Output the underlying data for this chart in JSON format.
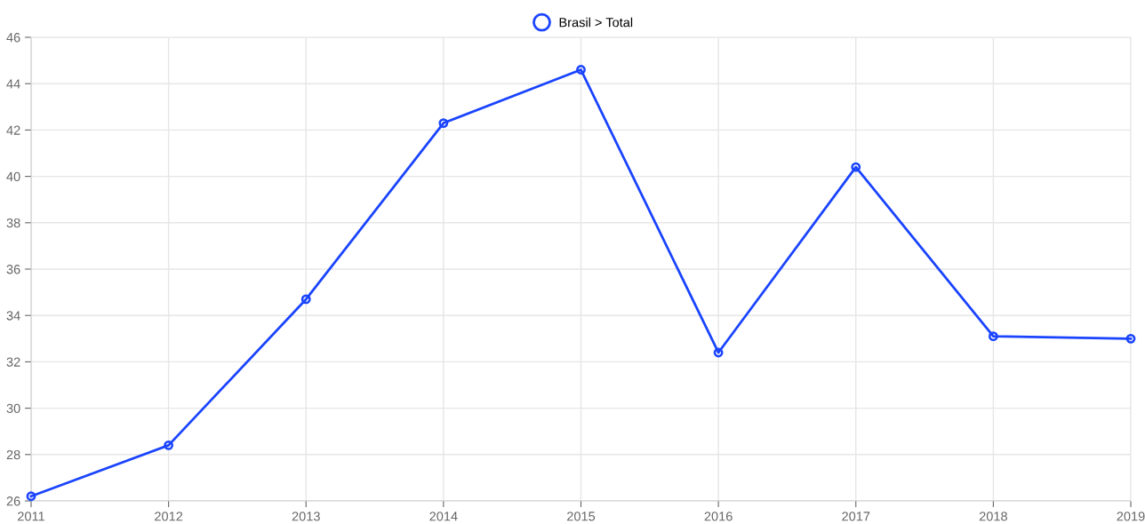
{
  "chart_data": {
    "type": "line",
    "categories": [
      "2011",
      "2012",
      "2013",
      "2014",
      "2015",
      "2016",
      "2017",
      "2018",
      "2019"
    ],
    "series": [
      {
        "name": "Brasil > Total",
        "color": "#1a44ff",
        "values": [
          26.2,
          28.4,
          34.7,
          42.3,
          44.6,
          32.4,
          40.4,
          33.1,
          33.0
        ]
      }
    ],
    "ylim": [
      26,
      46
    ],
    "yticks": [
      26,
      28,
      30,
      32,
      34,
      36,
      38,
      40,
      42,
      44,
      46
    ],
    "grid": true,
    "legend": "top",
    "marker": "circle",
    "line_style": "solid"
  }
}
